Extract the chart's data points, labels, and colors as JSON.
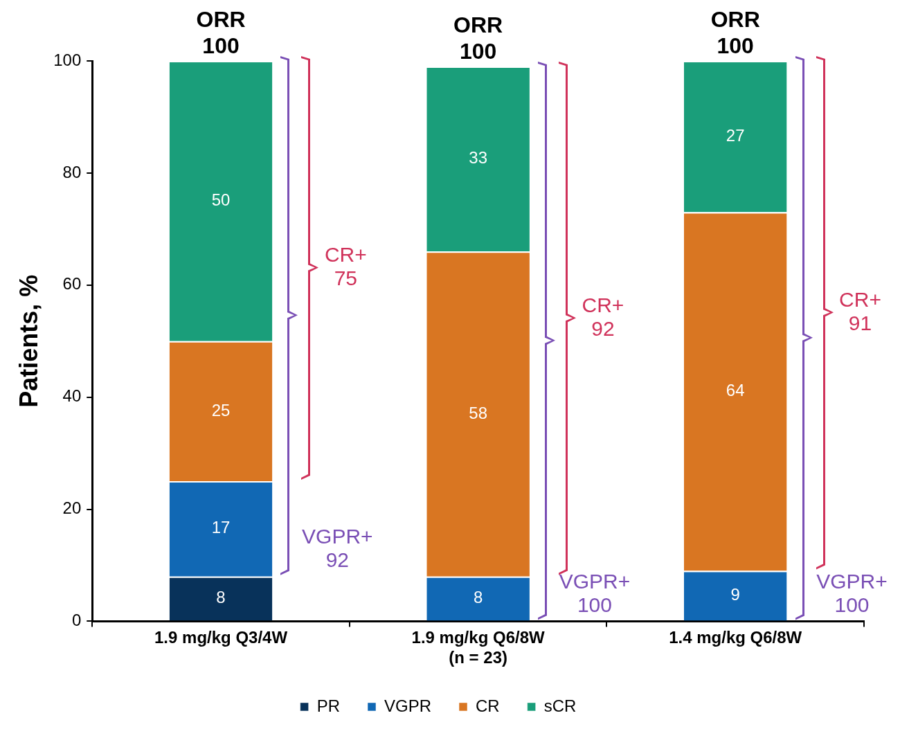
{
  "chart_data": {
    "type": "bar",
    "stacked": true,
    "ylabel": "Patients, %",
    "categories": [
      "1.9 mg/kg Q3/4W",
      "1.9 mg/kg Q6/8W\n(n = 23)",
      "1.4 mg/kg Q6/8W"
    ],
    "series": [
      {
        "name": "PR",
        "color": "#08325a",
        "values": [
          8,
          null,
          null
        ]
      },
      {
        "name": "VGPR",
        "color": "#1168b4",
        "values": [
          17,
          8,
          9
        ]
      },
      {
        "name": "CR",
        "color": "#d97622",
        "values": [
          25,
          58,
          64
        ]
      },
      {
        "name": "sCR",
        "color": "#1a9e7a",
        "values": [
          50,
          33,
          27
        ]
      }
    ],
    "ylim": [
      0,
      100
    ],
    "yticks": [
      0,
      20,
      40,
      60,
      80,
      100
    ],
    "grid": false,
    "legend": "bottom",
    "data_labels": true,
    "totals": [
      "ORR\n100",
      "ORR\n100",
      "ORR\n100"
    ],
    "annotations": [
      "VGPR+\n92",
      "CR+\n75",
      "VGPR+\n100",
      "CR+\n92",
      "VGPR+\n100",
      "CR+\n91"
    ]
  }
}
